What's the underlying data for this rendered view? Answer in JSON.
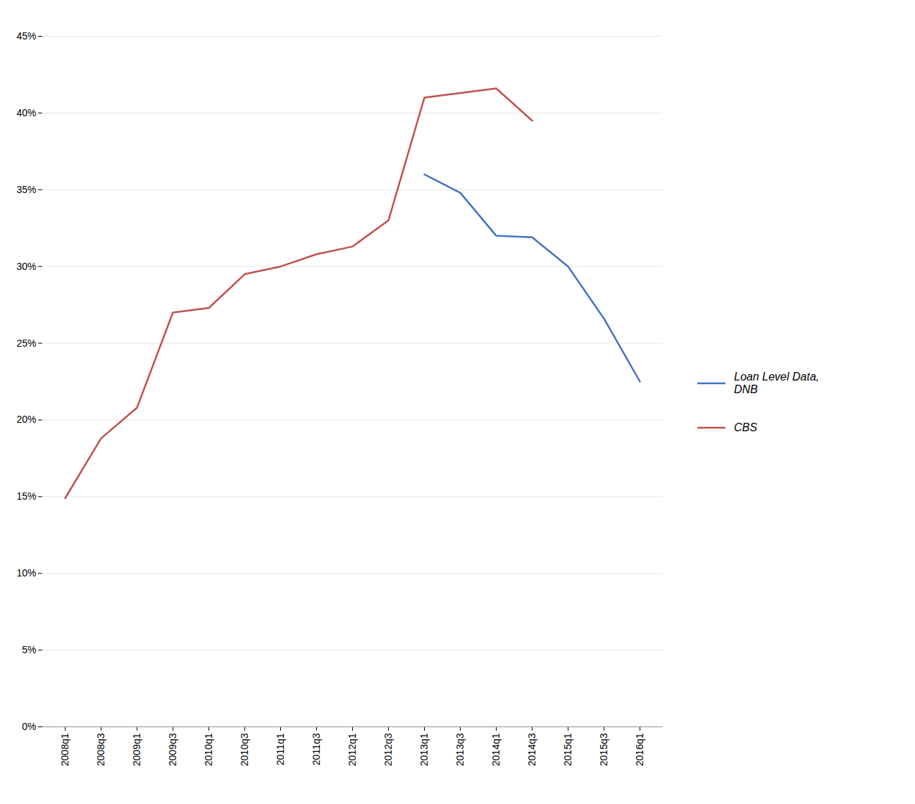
{
  "chart_data": {
    "type": "line",
    "categories": [
      "2008q1",
      "2008q3",
      "2009q1",
      "2009q3",
      "2010q1",
      "2010q3",
      "2011q1",
      "2011q3",
      "2012q1",
      "2012q3",
      "2013q1",
      "2013q3",
      "2014q1",
      "2014q3",
      "2015q1",
      "2015q3",
      "2016q1"
    ],
    "series": [
      {
        "name": "Loan Level Data,\nDNB",
        "color": "#4472C4",
        "values": [
          null,
          null,
          null,
          null,
          null,
          null,
          null,
          null,
          null,
          null,
          0.36,
          0.348,
          0.32,
          0.319,
          0.3,
          0.266,
          0.225
        ]
      },
      {
        "name": "CBS",
        "color": "#C0504D",
        "values": [
          0.149,
          0.188,
          0.208,
          0.27,
          0.273,
          0.295,
          0.3,
          0.308,
          0.313,
          0.33,
          0.41,
          0.413,
          0.416,
          0.395,
          null,
          null,
          null
        ]
      }
    ],
    "ylim": [
      0,
      0.45
    ],
    "yticks": [
      {
        "value": 0.0,
        "label": "0%"
      },
      {
        "value": 0.05,
        "label": "5%"
      },
      {
        "value": 0.1,
        "label": "10%"
      },
      {
        "value": 0.15,
        "label": "15%"
      },
      {
        "value": 0.2,
        "label": "20%"
      },
      {
        "value": 0.25,
        "label": "25%"
      },
      {
        "value": 0.3,
        "label": "30%"
      },
      {
        "value": 0.35,
        "label": "35%"
      },
      {
        "value": 0.4,
        "label": "40%"
      },
      {
        "value": 0.45,
        "label": "45%"
      }
    ],
    "grid": true,
    "legend": "right"
  }
}
